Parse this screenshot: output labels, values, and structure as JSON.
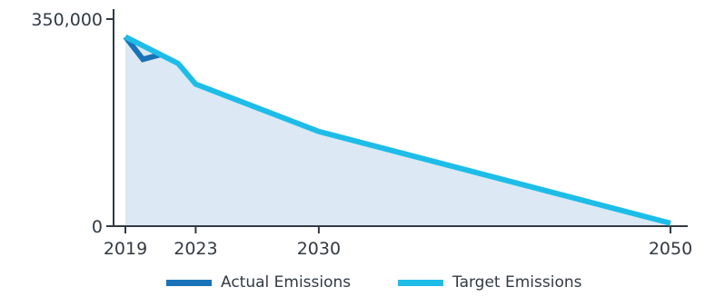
{
  "chart_data": {
    "type": "area",
    "title": "",
    "xlabel": "",
    "ylabel": "",
    "xlim": [
      2019,
      2050
    ],
    "ylim": [
      0,
      350000
    ],
    "x_ticks": [
      2019,
      2023,
      2030,
      2050
    ],
    "x_tick_labels": [
      "2019",
      "2023",
      "2030",
      "2050"
    ],
    "y_ticks": [
      0,
      350000
    ],
    "y_tick_labels": [
      "0",
      "350,000"
    ],
    "grid": false,
    "legend_placement": "bottom-center",
    "series": [
      {
        "name": "Actual Emissions",
        "color": "#1a73b8",
        "x": [
          2019,
          2020,
          2021
        ],
        "values": [
          320000,
          282000,
          290000
        ]
      },
      {
        "name": "Target Emissions",
        "color": "#1dbde8",
        "fill_color": "#dce8f4",
        "x": [
          2019,
          2022,
          2023,
          2030,
          2050
        ],
        "values": [
          320000,
          275000,
          240000,
          160000,
          5000
        ]
      }
    ]
  },
  "legend": {
    "actual_label": "Actual Emissions",
    "target_label": "Target Emissions"
  }
}
